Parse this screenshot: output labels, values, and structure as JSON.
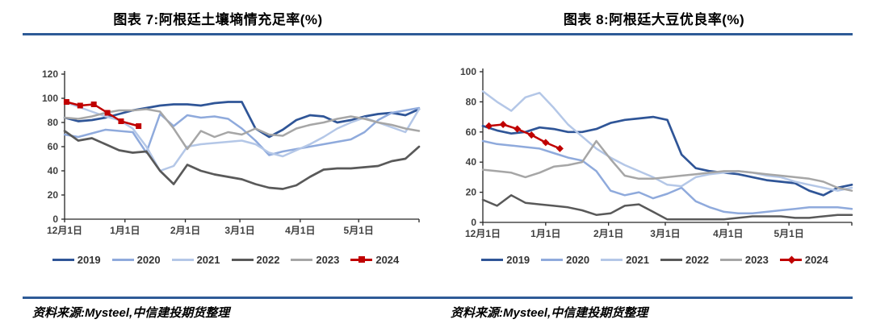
{
  "colors": {
    "accent_rule": "#2E5B97",
    "axis": "#262626",
    "tick_label": "#3F3F3F",
    "s2019": "#2F5597",
    "s2020": "#8FAADC",
    "s2021": "#B4C7E7",
    "s2022": "#595959",
    "s2023": "#A6A6A6",
    "s2024": "#C00000"
  },
  "chart_data": [
    {
      "type": "line",
      "title": "图表 7:阿根廷土壤墒情充足率(%)",
      "source": "资料来源:Mysteel,中信建投期货整理",
      "ylim": [
        0,
        120
      ],
      "yticks": [
        0,
        20,
        40,
        60,
        80,
        100,
        120
      ],
      "xlim_days": [
        0,
        182
      ],
      "xticks": [
        {
          "day": 0,
          "label": "12月1日"
        },
        {
          "day": 31,
          "label": "1月1日"
        },
        {
          "day": 62,
          "label": "2月1日"
        },
        {
          "day": 90,
          "label": "3月1日"
        },
        {
          "day": 121,
          "label": "4月1日"
        },
        {
          "day": 151,
          "label": "5月1日"
        }
      ],
      "grid": false,
      "legend_position": "bottom",
      "series": [
        {
          "name": "2019",
          "color": "#2F5597",
          "width": 2.7,
          "values": [
            84,
            81,
            82,
            84,
            87,
            90,
            92,
            94,
            95,
            95,
            94,
            96,
            97,
            97,
            75,
            68,
            74,
            82,
            86,
            85,
            80,
            82,
            85,
            87,
            88,
            86,
            91
          ]
        },
        {
          "name": "2020",
          "color": "#8FAADC",
          "width": 2.5,
          "values": [
            70,
            68,
            71,
            74,
            73,
            72,
            55,
            87,
            77,
            86,
            84,
            85,
            83,
            75,
            65,
            53,
            56,
            58,
            60,
            62,
            64,
            66,
            72,
            82,
            88,
            90,
            92
          ]
        },
        {
          "name": "2021",
          "color": "#B4C7E7",
          "width": 2.5,
          "values": [
            97,
            93,
            89,
            85,
            82,
            75,
            60,
            40,
            44,
            60,
            62,
            63,
            64,
            65,
            62,
            55,
            52,
            57,
            62,
            68,
            75,
            80,
            84,
            80,
            76,
            72,
            91
          ]
        },
        {
          "name": "2022",
          "color": "#595959",
          "width": 2.7,
          "values": [
            73,
            65,
            67,
            62,
            57,
            55,
            56,
            40,
            29,
            45,
            40,
            37,
            35,
            33,
            29,
            26,
            25,
            28,
            35,
            41,
            42,
            42,
            43,
            44,
            48,
            50,
            60
          ]
        },
        {
          "name": "2023",
          "color": "#A6A6A6",
          "width": 2.5,
          "values": [
            84,
            83,
            85,
            88,
            90,
            90,
            91,
            89,
            75,
            58,
            73,
            68,
            72,
            70,
            75,
            70,
            69,
            75,
            78,
            80,
            83,
            85,
            83,
            80,
            78,
            75,
            73
          ]
        },
        {
          "name": "2024",
          "color": "#C00000",
          "width": 2.5,
          "marker": "square",
          "days": [
            1,
            8,
            15,
            22,
            29,
            38
          ],
          "values": [
            97,
            94,
            95,
            88,
            81,
            77
          ]
        }
      ]
    },
    {
      "type": "line",
      "title": "图表 8:阿根廷大豆优良率(%)",
      "source": "资料来源:Mysteel,中信建投期货整理",
      "ylim": [
        0,
        100
      ],
      "yticks": [
        0,
        20,
        40,
        60,
        80,
        100
      ],
      "xlim_days": [
        0,
        182
      ],
      "xticks": [
        {
          "day": 0,
          "label": "12月1日"
        },
        {
          "day": 31,
          "label": "1月1日"
        },
        {
          "day": 62,
          "label": "2月1日"
        },
        {
          "day": 90,
          "label": "3月1日"
        },
        {
          "day": 121,
          "label": "4月1日"
        },
        {
          "day": 151,
          "label": "5月1日"
        }
      ],
      "grid": false,
      "legend_position": "bottom",
      "series": [
        {
          "name": "2019",
          "color": "#2F5597",
          "width": 2.7,
          "values": [
            64,
            61,
            59,
            60,
            63,
            62,
            60,
            60,
            62,
            66,
            68,
            69,
            70,
            68,
            45,
            36,
            34,
            33,
            32,
            30,
            28,
            27,
            26,
            21,
            18,
            23,
            25
          ]
        },
        {
          "name": "2020",
          "color": "#8FAADC",
          "width": 2.5,
          "values": [
            54,
            52,
            51,
            50,
            49,
            46,
            43,
            41,
            34,
            21,
            18,
            20,
            16,
            19,
            23,
            14,
            10,
            7,
            6,
            6,
            7,
            8,
            9,
            10,
            10,
            10,
            9
          ]
        },
        {
          "name": "2021",
          "color": "#B4C7E7",
          "width": 2.5,
          "values": [
            87,
            80,
            74,
            83,
            86,
            76,
            65,
            57,
            49,
            43,
            38,
            34,
            30,
            25,
            24,
            30,
            32,
            33,
            34,
            33,
            31,
            30,
            27,
            25,
            23,
            21,
            23
          ]
        },
        {
          "name": "2022",
          "color": "#595959",
          "width": 2.5,
          "values": [
            15,
            11,
            18,
            13,
            12,
            11,
            10,
            8,
            5,
            6,
            11,
            12,
            7,
            2,
            2,
            2,
            2,
            2,
            3,
            4,
            4,
            4,
            3,
            3,
            4,
            5,
            5
          ]
        },
        {
          "name": "2023",
          "color": "#A6A6A6",
          "width": 2.5,
          "values": [
            35,
            34,
            33,
            30,
            33,
            37,
            38,
            40,
            54,
            42,
            31,
            29,
            29,
            30,
            31,
            32,
            33,
            34,
            34,
            33,
            32,
            31,
            30,
            29,
            27,
            23,
            21
          ]
        },
        {
          "name": "2024",
          "color": "#C00000",
          "width": 2.5,
          "marker": "diamond",
          "days": [
            3,
            10,
            17,
            24,
            31,
            38
          ],
          "values": [
            64,
            65,
            62,
            58,
            53,
            49
          ]
        }
      ]
    }
  ]
}
